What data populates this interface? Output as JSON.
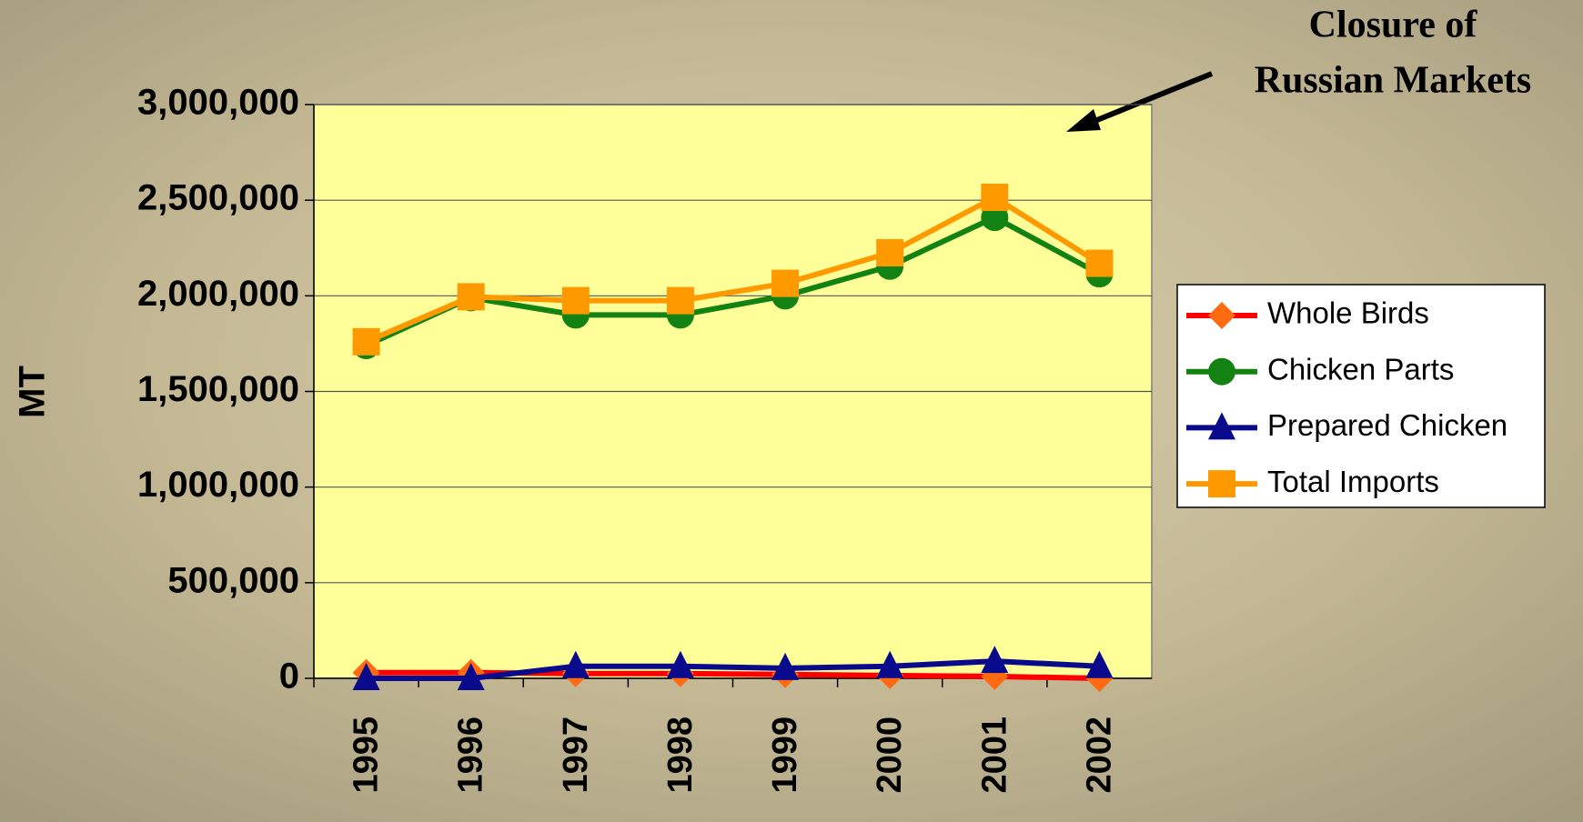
{
  "chart_data": {
    "type": "line",
    "y_label": "MT",
    "annotation": [
      "Closure of",
      "Russian Markets"
    ],
    "categories": [
      "1995",
      "1996",
      "1997",
      "1998",
      "1999",
      "2000",
      "2001",
      "2002"
    ],
    "series": [
      {
        "name": "Whole Birds",
        "color": "#ff0000",
        "marker": "diamond",
        "marker_color": "#ff6a13",
        "values": [
          30000,
          30000,
          25000,
          25000,
          20000,
          15000,
          10000,
          0
        ]
      },
      {
        "name": "Chicken Parts",
        "color": "#128212",
        "marker": "circle",
        "marker_color": "#128212",
        "values": [
          1740000,
          1990000,
          1900000,
          1900000,
          2000000,
          2155000,
          2410000,
          2115000
        ]
      },
      {
        "name": "Prepared Chicken",
        "color": "#0a0a8c",
        "marker": "triangle",
        "marker_color": "#0a0a8c",
        "values": [
          0,
          0,
          63000,
          63000,
          53000,
          63000,
          90000,
          63000
        ]
      },
      {
        "name": "Total Imports",
        "color": "#ff9900",
        "marker": "square",
        "marker_color": "#ff9900",
        "values": [
          1760000,
          1995000,
          1975000,
          1975000,
          2065000,
          2225000,
          2515000,
          2170000
        ]
      }
    ],
    "ylim": [
      0,
      3000000
    ],
    "yticks": [
      0,
      {
        "value": 500000,
        "label": "500,000"
      },
      {
        "value": 1000000,
        "label": "1,000,000"
      },
      {
        "value": 1500000,
        "label": "1,500,000"
      },
      {
        "value": 2000000,
        "label": "2,000,000"
      },
      {
        "value": 2500000,
        "label": "2,500,000"
      },
      {
        "value": 3000000,
        "label": "3,000,000"
      }
    ],
    "grid": true,
    "plot_background": "#ffff99",
    "legend_position": "right"
  }
}
